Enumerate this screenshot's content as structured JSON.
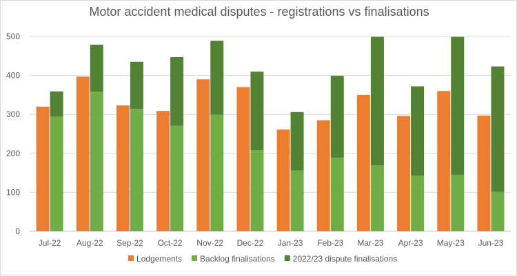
{
  "chart_data": {
    "type": "bar",
    "title": "Motor accident medical disputes - registrations vs finalisations",
    "xlabel": "",
    "ylabel": "",
    "ylim": [
      0,
      500
    ],
    "yticks": [
      "0",
      "100",
      "200",
      "300",
      "400",
      "500"
    ],
    "grid": true,
    "legend_position": "bottom",
    "categories": [
      "Jul-22",
      "Aug-22",
      "Sep-22",
      "Oct-22",
      "Nov-22",
      "Dec-22",
      "Jan-23",
      "Feb-23",
      "Mar-23",
      "Apr-23",
      "May-23",
      "Jun-23"
    ],
    "series": [
      {
        "name": "Lodgements",
        "color": "#ed7d31",
        "stack": "lodgements",
        "values": [
          320,
          397,
          323,
          309,
          390,
          370,
          261,
          285,
          350,
          296,
          360,
          297
        ]
      },
      {
        "name": "Backlog finalisations",
        "color": "#70ad47",
        "stack": "finalisations",
        "values": [
          294,
          358,
          314,
          271,
          299,
          208,
          156,
          189,
          169,
          143,
          145,
          101
        ]
      },
      {
        "name": "2022/23 dispute finalisations",
        "color": "#548235",
        "stack": "finalisations",
        "values": [
          65,
          121,
          121,
          176,
          190,
          202,
          150,
          210,
          330,
          229,
          354,
          322
        ]
      }
    ]
  }
}
